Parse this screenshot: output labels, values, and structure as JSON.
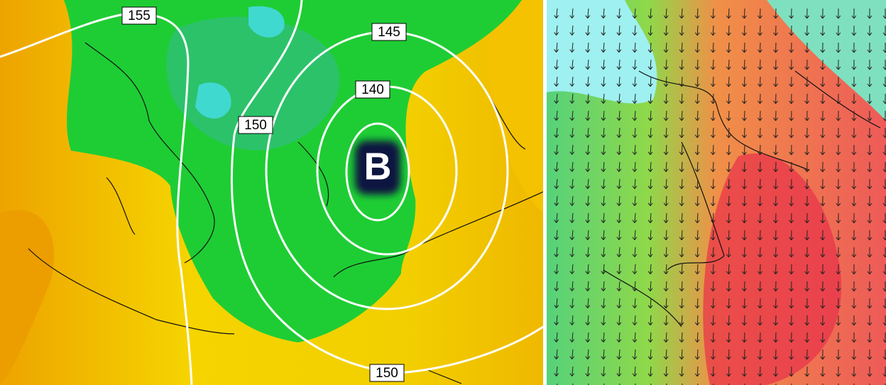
{
  "left_map": {
    "contour_labels": [
      "155",
      "145",
      "140",
      "150",
      "150"
    ],
    "low_marker": "B"
  }
}
